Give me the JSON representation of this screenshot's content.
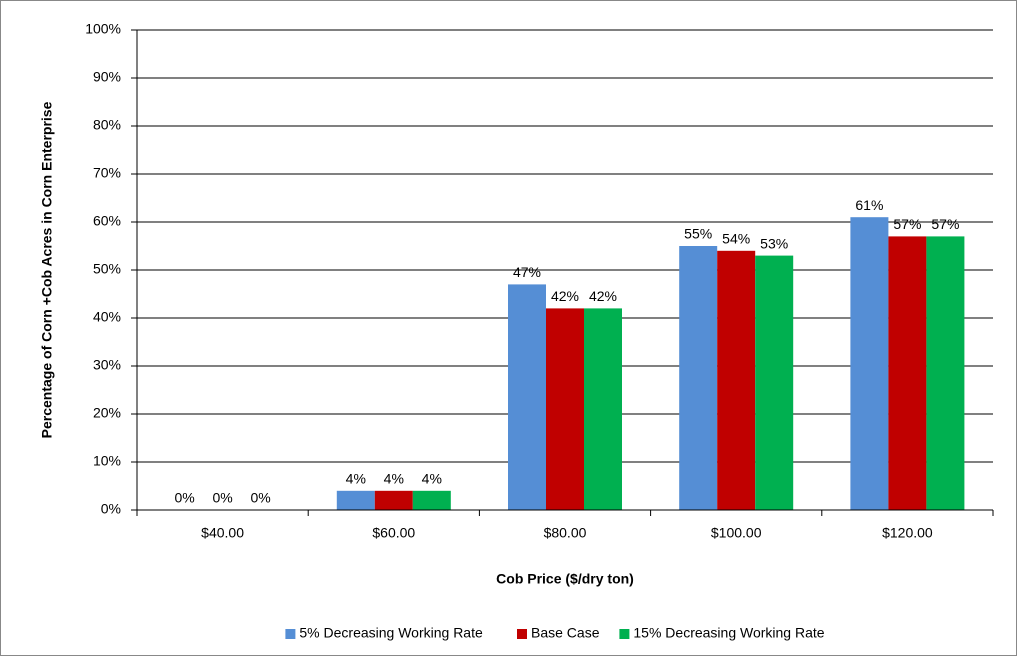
{
  "chart_data": {
    "type": "bar",
    "x_label": "Cob Price ($/dry ton)",
    "y_label": "Percentage of Corn +Cob Acres in Corn Enterprise",
    "categories": [
      "$40.00",
      "$60.00",
      "$80.00",
      "$100.00",
      "$120.00"
    ],
    "series": [
      {
        "name": "5% Decreasing Working Rate",
        "color": "#558ed5",
        "values": [
          0,
          4,
          47,
          55,
          61
        ],
        "value_labels": [
          "0%",
          "4%",
          "47%",
          "55%",
          "61%"
        ]
      },
      {
        "name": "Base Case",
        "color": "#c00000",
        "values": [
          0,
          4,
          42,
          54,
          57
        ],
        "value_labels": [
          "0%",
          "4%",
          "42%",
          "54%",
          "57%"
        ]
      },
      {
        "name": "15% Decreasing Working Rate",
        "color": "#00b050",
        "values": [
          0,
          4,
          42,
          53,
          57
        ],
        "value_labels": [
          "0%",
          "4%",
          "42%",
          "53%",
          "57%"
        ]
      }
    ],
    "ylim": [
      0,
      100
    ],
    "yticks": [
      {
        "value": 0,
        "label": "0%"
      },
      {
        "value": 10,
        "label": "10%"
      },
      {
        "value": 20,
        "label": "20%"
      },
      {
        "value": 30,
        "label": "30%"
      },
      {
        "value": 40,
        "label": "40%"
      },
      {
        "value": 50,
        "label": "50%"
      },
      {
        "value": 60,
        "label": "60%"
      },
      {
        "value": 70,
        "label": "70%"
      },
      {
        "value": 80,
        "label": "80%"
      },
      {
        "value": 90,
        "label": "90%"
      },
      {
        "value": 100,
        "label": "100%"
      }
    ],
    "grid": true,
    "legend": "bottom"
  }
}
